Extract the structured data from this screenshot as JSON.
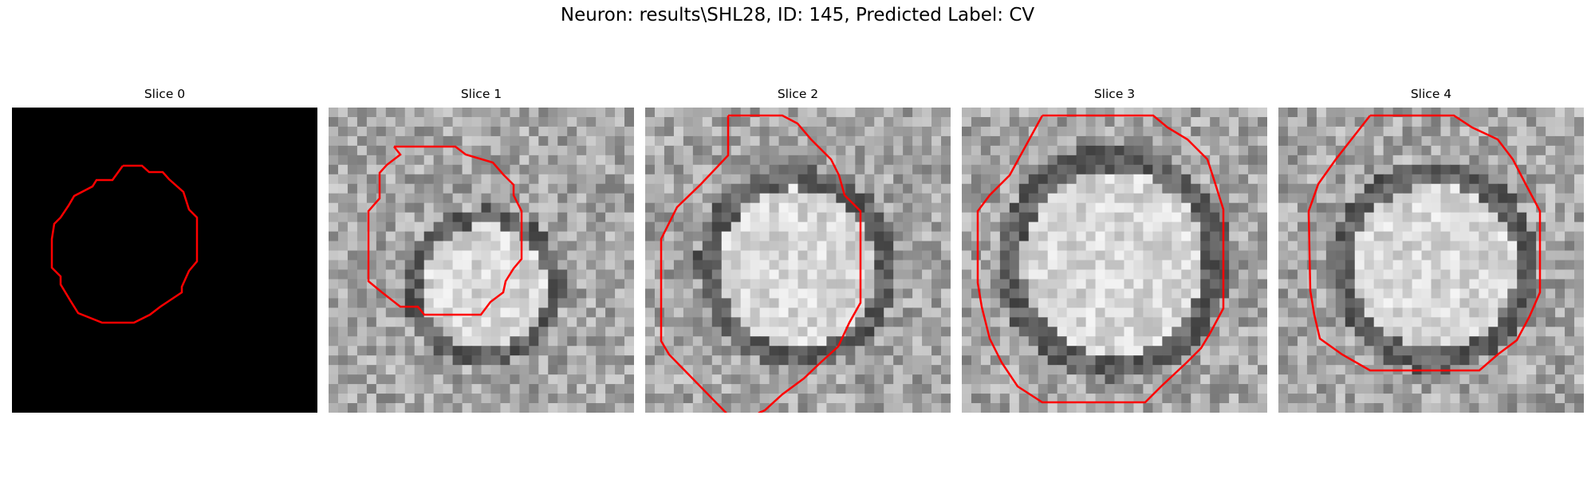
{
  "figure": {
    "title": "Neuron: results\\SHL28, ID: 145, Predicted Label: CV"
  },
  "slices": [
    {
      "title": "Slice 0",
      "kind": "blank"
    },
    {
      "title": "Slice 1",
      "kind": "cell"
    },
    {
      "title": "Slice 2",
      "kind": "cell"
    },
    {
      "title": "Slice 3",
      "kind": "cell"
    },
    {
      "title": "Slice 4",
      "kind": "cell"
    }
  ],
  "colors": {
    "contour": "#ff0000",
    "background_slice0": "#000000"
  }
}
